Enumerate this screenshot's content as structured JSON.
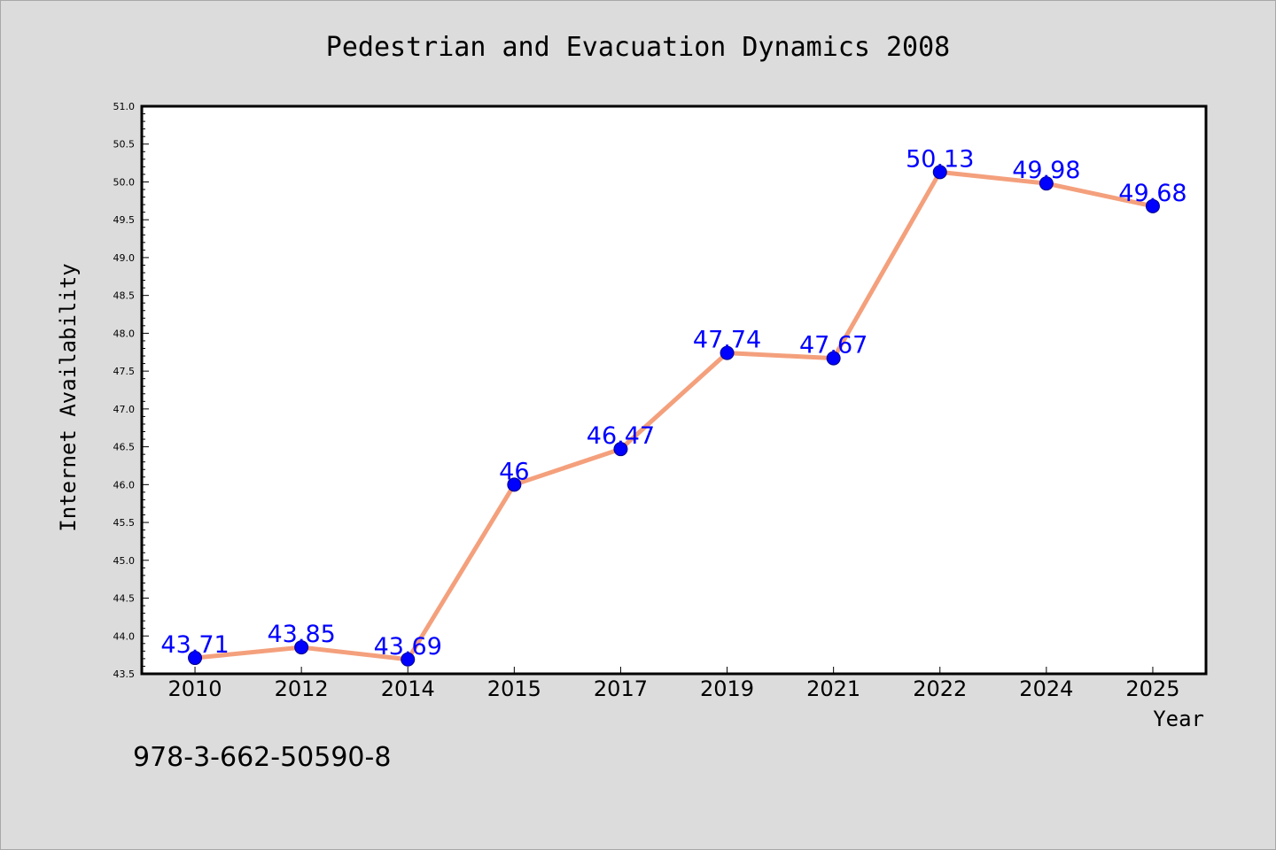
{
  "colors": {
    "background": "#dcdcdc",
    "plot_background": "#ffffff",
    "line": "#f4a07c",
    "marker": "#0000ff",
    "data_label": "#0000ff"
  },
  "footnote": "978-3-662-50590-8",
  "chart_data": {
    "type": "line",
    "title": "Pedestrian and Evacuation Dynamics 2008",
    "xlabel": "Year",
    "ylabel": "Internet Availability",
    "categories": [
      "2010",
      "2012",
      "2014",
      "2015",
      "2017",
      "2019",
      "2021",
      "2022",
      "2024",
      "2025"
    ],
    "series": [
      {
        "values": [
          43.71,
          43.85,
          43.69,
          46,
          46.47,
          47.74,
          47.67,
          50.13,
          49.98,
          49.68
        ],
        "labels": [
          "43.71",
          "43.85",
          "43.69",
          "46",
          "46.47",
          "47.74",
          "47.67",
          "50.13",
          "49.98",
          "49.68"
        ]
      }
    ],
    "ylim": [
      43.5,
      51.0
    ],
    "yticks": [
      "43.5",
      "44.0",
      "44.5",
      "45.0",
      "45.5",
      "46.0",
      "46.5",
      "47.0",
      "47.5",
      "48.0",
      "48.5",
      "49.0",
      "49.5",
      "50.0",
      "50.5",
      "51.0"
    ],
    "grid": false,
    "legend": "none"
  }
}
